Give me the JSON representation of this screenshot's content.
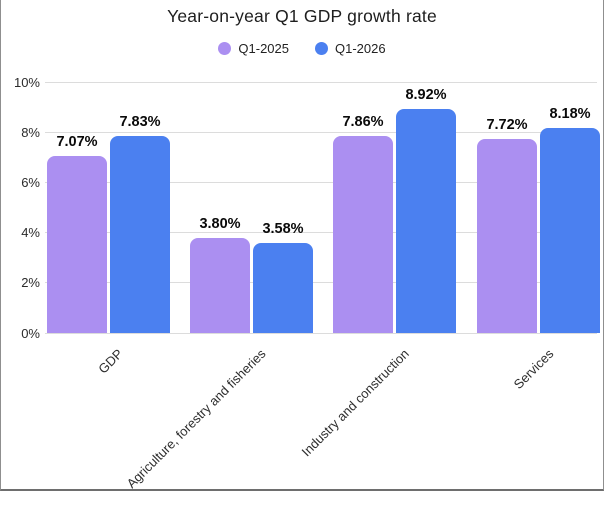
{
  "chart_data": {
    "type": "bar",
    "title": "Year-on-year Q1 GDP growth rate",
    "categories": [
      "GDP",
      "Agriculture, forestry and fisheries",
      "Industry and construction",
      "Services"
    ],
    "series": [
      {
        "name": "Q1-2025",
        "color": "#ab8ff1",
        "values": [
          7.07,
          3.8,
          7.86,
          7.72
        ],
        "value_labels": [
          "7.07%",
          "3.80%",
          "7.86%",
          "7.72%"
        ]
      },
      {
        "name": "Q1-2026",
        "color": "#4b80f0",
        "values": [
          7.83,
          3.58,
          8.92,
          8.18
        ],
        "value_labels": [
          "7.83%",
          "3.58%",
          "8.92%",
          "8.18%"
        ]
      }
    ],
    "ylabel": "",
    "xlabel": "",
    "ylim": [
      0,
      10
    ],
    "yticks": [
      0,
      2,
      4,
      6,
      8,
      10
    ],
    "ytick_labels": [
      "0%",
      "2%",
      "4%",
      "6%",
      "8%",
      "10%"
    ],
    "grid": true,
    "legend_position": "top",
    "colors": {
      "gridline": "#dcdcdc",
      "axis_text": "#2b2b2b",
      "value_label_text": "#0a0a0a",
      "title_text": "#1e1e1e",
      "frame_border": "#8f8f8f"
    }
  }
}
